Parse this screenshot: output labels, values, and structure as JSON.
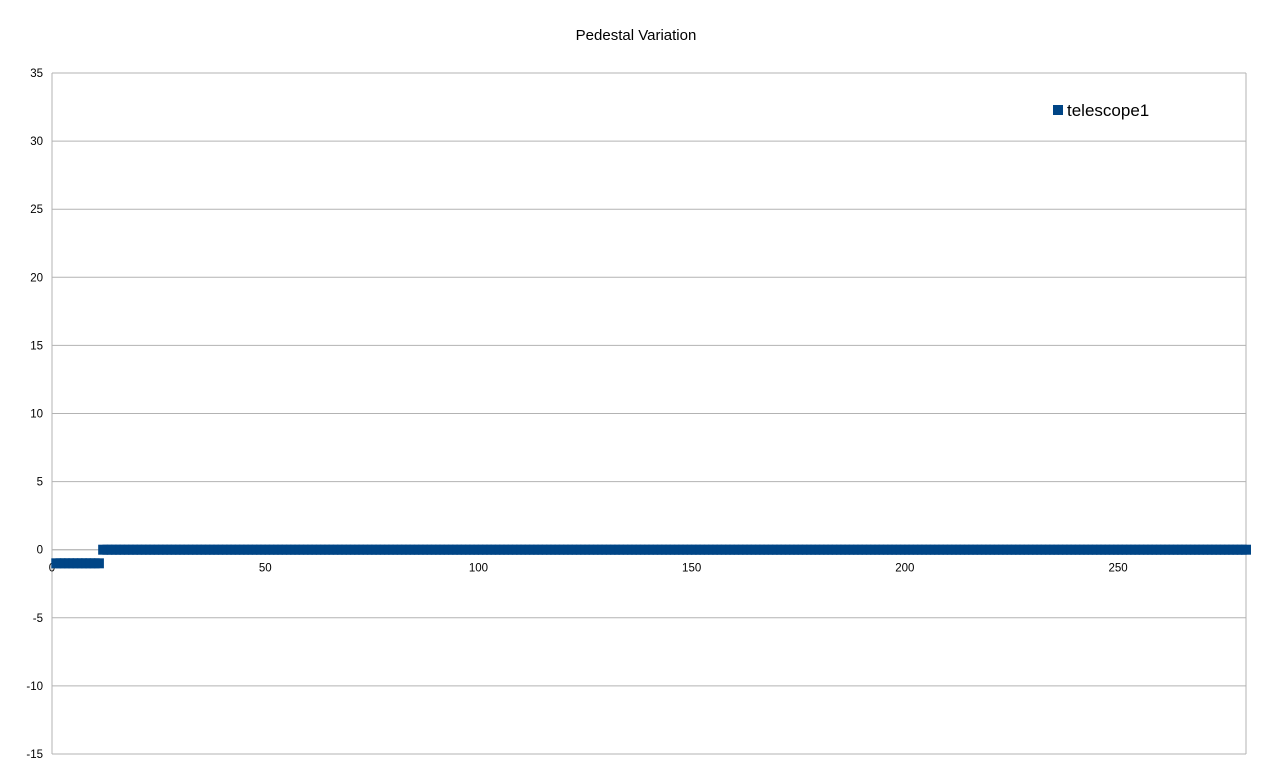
{
  "chart_data": {
    "type": "scatter",
    "title": "Pedestal Variation",
    "xlabel": "",
    "ylabel": "",
    "xlim": [
      0,
      280
    ],
    "ylim": [
      -15,
      35
    ],
    "xticks": [
      0,
      50,
      100,
      150,
      200,
      250
    ],
    "yticks": [
      -15,
      -10,
      -5,
      0,
      5,
      10,
      15,
      20,
      25,
      30,
      35
    ],
    "grid": "horizontal",
    "legend_position": "top-right",
    "series": [
      {
        "name": "telescope1",
        "marker": "square",
        "color": "#004586",
        "points": [
          [
            1,
            -1
          ],
          [
            2,
            -1
          ],
          [
            3,
            -1
          ],
          [
            4,
            -1
          ],
          [
            5,
            -1
          ],
          [
            6,
            -1
          ],
          [
            7,
            -1
          ],
          [
            8,
            -1
          ],
          [
            9,
            -1
          ],
          [
            10,
            -1
          ],
          [
            11,
            -1
          ],
          [
            12,
            0
          ],
          [
            13,
            0
          ],
          [
            14,
            0
          ],
          [
            15,
            0
          ],
          [
            16,
            0
          ],
          [
            17,
            0
          ],
          [
            18,
            0
          ],
          [
            19,
            0
          ],
          [
            20,
            0
          ],
          [
            21,
            0
          ],
          [
            22,
            0
          ],
          [
            23,
            0
          ],
          [
            24,
            0
          ],
          [
            25,
            0
          ],
          [
            26,
            0
          ],
          [
            27,
            0
          ],
          [
            28,
            0
          ],
          [
            29,
            0
          ],
          [
            30,
            0
          ],
          [
            31,
            0
          ],
          [
            32,
            0
          ],
          [
            33,
            0
          ],
          [
            34,
            0
          ],
          [
            35,
            0
          ],
          [
            36,
            0
          ],
          [
            37,
            0
          ],
          [
            38,
            0
          ],
          [
            39,
            0
          ],
          [
            40,
            0
          ],
          [
            41,
            0
          ],
          [
            42,
            0
          ],
          [
            43,
            0
          ],
          [
            44,
            0
          ],
          [
            45,
            0
          ],
          [
            46,
            0
          ],
          [
            47,
            0
          ],
          [
            48,
            0
          ],
          [
            49,
            0
          ],
          [
            50,
            0
          ],
          [
            51,
            0
          ],
          [
            52,
            0
          ],
          [
            53,
            0
          ],
          [
            54,
            0
          ],
          [
            55,
            0
          ],
          [
            56,
            0
          ],
          [
            57,
            0
          ],
          [
            58,
            0
          ],
          [
            59,
            0
          ],
          [
            60,
            0
          ],
          [
            61,
            0
          ],
          [
            62,
            0
          ],
          [
            63,
            0
          ],
          [
            64,
            0
          ],
          [
            65,
            0
          ],
          [
            66,
            0
          ],
          [
            67,
            0
          ],
          [
            68,
            0
          ],
          [
            69,
            0
          ],
          [
            70,
            0
          ],
          [
            71,
            0
          ],
          [
            72,
            0
          ],
          [
            73,
            0
          ],
          [
            74,
            0
          ],
          [
            75,
            0
          ],
          [
            76,
            0
          ],
          [
            77,
            0
          ],
          [
            78,
            0
          ],
          [
            79,
            0
          ],
          [
            80,
            0
          ],
          [
            81,
            0
          ],
          [
            82,
            0
          ],
          [
            83,
            0
          ],
          [
            84,
            0
          ],
          [
            85,
            0
          ],
          [
            86,
            0
          ],
          [
            87,
            0
          ],
          [
            88,
            0
          ],
          [
            89,
            0
          ],
          [
            90,
            0
          ],
          [
            91,
            0
          ],
          [
            92,
            0
          ],
          [
            93,
            0
          ],
          [
            94,
            0
          ],
          [
            95,
            0
          ],
          [
            96,
            0
          ],
          [
            97,
            0
          ],
          [
            98,
            0
          ],
          [
            99,
            0
          ],
          [
            100,
            0
          ],
          [
            101,
            0
          ],
          [
            102,
            0
          ],
          [
            103,
            0
          ],
          [
            104,
            0
          ],
          [
            105,
            0
          ],
          [
            106,
            0
          ],
          [
            107,
            0
          ],
          [
            108,
            0
          ],
          [
            109,
            0
          ],
          [
            110,
            0
          ],
          [
            111,
            0
          ],
          [
            112,
            0
          ],
          [
            113,
            0
          ],
          [
            114,
            0
          ],
          [
            115,
            0
          ],
          [
            116,
            0
          ],
          [
            117,
            0
          ],
          [
            118,
            0
          ],
          [
            119,
            0
          ],
          [
            120,
            0
          ],
          [
            121,
            0
          ],
          [
            122,
            0
          ],
          [
            123,
            0
          ],
          [
            124,
            0
          ],
          [
            125,
            0
          ],
          [
            126,
            0
          ],
          [
            127,
            0
          ],
          [
            128,
            0
          ],
          [
            129,
            0
          ],
          [
            130,
            0
          ],
          [
            131,
            0
          ],
          [
            132,
            0
          ],
          [
            133,
            0
          ],
          [
            134,
            0
          ],
          [
            135,
            0
          ],
          [
            136,
            0
          ],
          [
            137,
            0
          ],
          [
            138,
            0
          ],
          [
            139,
            0
          ],
          [
            140,
            0
          ],
          [
            141,
            0
          ],
          [
            142,
            0
          ],
          [
            143,
            0
          ],
          [
            144,
            0
          ],
          [
            145,
            0
          ],
          [
            146,
            0
          ],
          [
            147,
            0
          ],
          [
            148,
            0
          ],
          [
            149,
            0
          ],
          [
            150,
            0
          ],
          [
            151,
            0
          ],
          [
            152,
            0
          ],
          [
            153,
            0
          ],
          [
            154,
            0
          ],
          [
            155,
            0
          ],
          [
            156,
            0
          ],
          [
            157,
            0
          ],
          [
            158,
            0
          ],
          [
            159,
            0
          ],
          [
            160,
            0
          ],
          [
            161,
            0
          ],
          [
            162,
            0
          ],
          [
            163,
            0
          ],
          [
            164,
            0
          ],
          [
            165,
            0
          ],
          [
            166,
            0
          ],
          [
            167,
            0
          ],
          [
            168,
            0
          ],
          [
            169,
            0
          ],
          [
            170,
            0
          ],
          [
            171,
            0
          ],
          [
            172,
            0
          ],
          [
            173,
            0
          ],
          [
            174,
            0
          ],
          [
            175,
            0
          ],
          [
            176,
            0
          ],
          [
            177,
            0
          ],
          [
            178,
            0
          ],
          [
            179,
            0
          ],
          [
            180,
            0
          ],
          [
            181,
            0
          ],
          [
            182,
            0
          ],
          [
            183,
            0
          ],
          [
            184,
            0
          ],
          [
            185,
            0
          ],
          [
            186,
            0
          ],
          [
            187,
            0
          ],
          [
            188,
            0
          ],
          [
            189,
            0
          ],
          [
            190,
            0
          ],
          [
            191,
            0
          ],
          [
            192,
            0
          ],
          [
            193,
            0
          ],
          [
            194,
            0
          ],
          [
            195,
            0
          ],
          [
            196,
            0
          ],
          [
            197,
            0
          ],
          [
            198,
            0
          ],
          [
            199,
            0
          ],
          [
            200,
            0
          ],
          [
            201,
            0
          ],
          [
            202,
            0
          ],
          [
            203,
            0
          ],
          [
            204,
            0
          ],
          [
            205,
            0
          ],
          [
            206,
            0
          ],
          [
            207,
            0
          ],
          [
            208,
            0
          ],
          [
            209,
            0
          ],
          [
            210,
            0
          ],
          [
            211,
            0
          ],
          [
            212,
            0
          ],
          [
            213,
            0
          ],
          [
            214,
            0
          ],
          [
            215,
            0
          ],
          [
            216,
            0
          ],
          [
            217,
            0
          ],
          [
            218,
            0
          ],
          [
            219,
            0
          ],
          [
            220,
            0
          ],
          [
            221,
            0
          ],
          [
            222,
            0
          ],
          [
            223,
            0
          ],
          [
            224,
            0
          ],
          [
            225,
            0
          ],
          [
            226,
            0
          ],
          [
            227,
            0
          ],
          [
            228,
            0
          ],
          [
            229,
            0
          ],
          [
            230,
            0
          ],
          [
            231,
            0
          ],
          [
            232,
            0
          ],
          [
            233,
            0
          ],
          [
            234,
            0
          ],
          [
            235,
            0
          ],
          [
            236,
            0
          ],
          [
            237,
            0
          ],
          [
            238,
            0
          ],
          [
            239,
            0
          ],
          [
            240,
            0
          ],
          [
            241,
            0
          ],
          [
            242,
            0
          ],
          [
            243,
            0
          ],
          [
            244,
            0
          ],
          [
            245,
            0
          ],
          [
            246,
            0
          ],
          [
            247,
            0
          ],
          [
            248,
            0
          ],
          [
            249,
            0
          ],
          [
            250,
            0
          ],
          [
            251,
            0
          ],
          [
            252,
            0
          ],
          [
            253,
            0
          ],
          [
            254,
            0
          ],
          [
            255,
            0
          ],
          [
            256,
            0
          ],
          [
            257,
            0
          ],
          [
            258,
            0
          ],
          [
            259,
            0
          ],
          [
            260,
            0
          ],
          [
            261,
            0
          ],
          [
            262,
            0
          ],
          [
            263,
            0
          ],
          [
            264,
            0
          ],
          [
            265,
            0
          ],
          [
            266,
            0
          ],
          [
            267,
            0
          ],
          [
            268,
            0
          ],
          [
            269,
            0
          ],
          [
            270,
            0
          ],
          [
            271,
            0
          ],
          [
            272,
            0
          ],
          [
            273,
            0
          ],
          [
            274,
            0
          ],
          [
            275,
            0
          ],
          [
            276,
            0
          ],
          [
            277,
            0
          ],
          [
            278,
            0
          ],
          [
            279,
            0
          ],
          [
            280,
            0
          ]
        ]
      }
    ]
  }
}
